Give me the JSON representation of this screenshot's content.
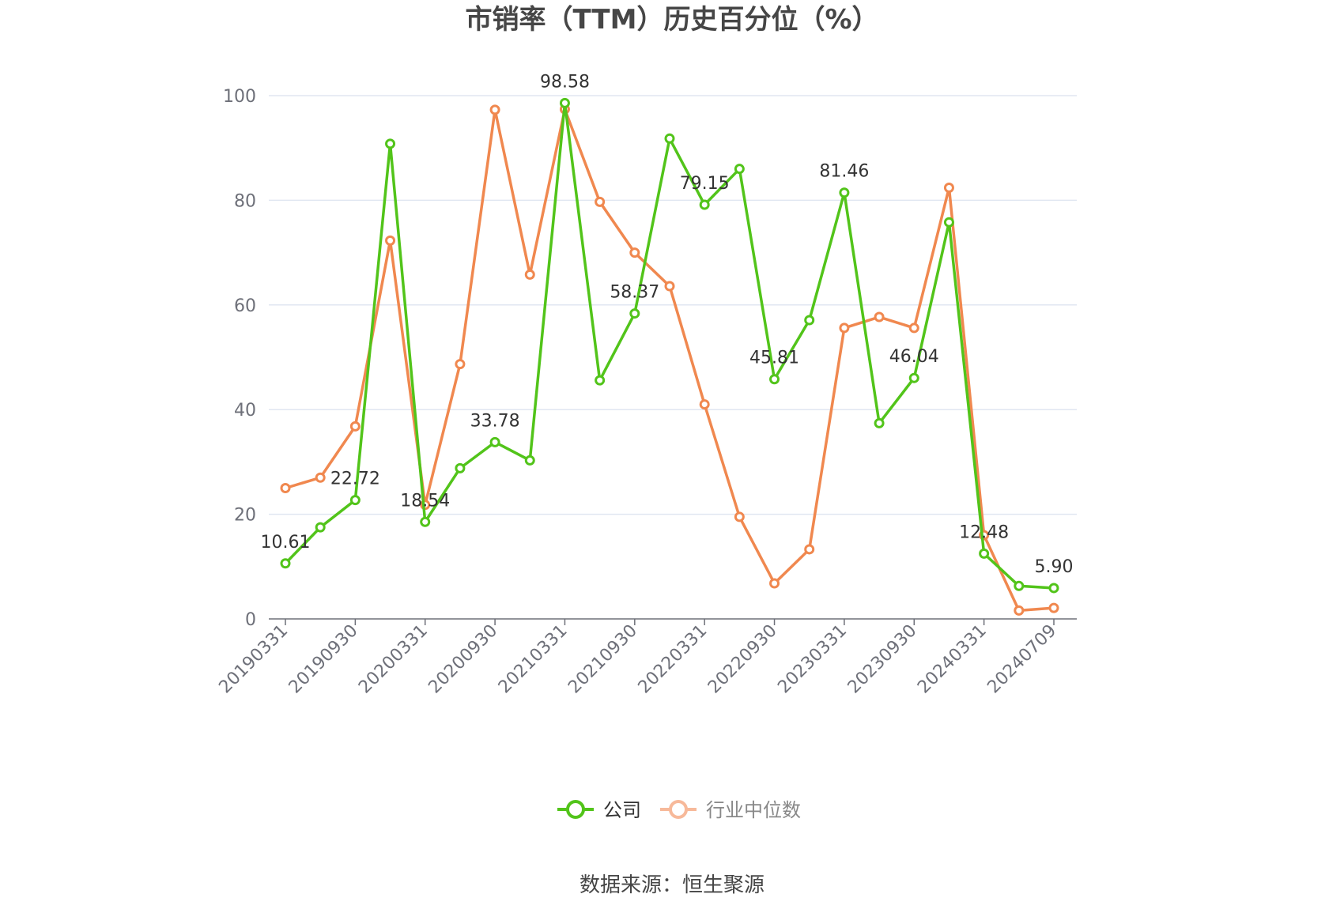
{
  "chart_data": {
    "type": "line",
    "title": "市销率（TTM）历史百分位（%）",
    "source": "数据来源：恒生聚源",
    "ylim": [
      0,
      100
    ],
    "y_ticks": [
      0,
      20,
      40,
      60,
      80,
      100
    ],
    "x": [
      "20190331",
      "20190630",
      "20190930",
      "20191231",
      "20200331",
      "20200630",
      "20200930",
      "20201231",
      "20210331",
      "20210630",
      "20210930",
      "20211231",
      "20220331",
      "20220630",
      "20220930",
      "20221231",
      "20230331",
      "20230630",
      "20230930",
      "20231231",
      "20240331",
      "20240630",
      "20240709"
    ],
    "x_tick_labels": [
      "20190331",
      "20190930",
      "20200331",
      "20200930",
      "20210331",
      "20210930",
      "20220331",
      "20220930",
      "20230331",
      "20230930",
      "20240331",
      "20240709"
    ],
    "grid": true,
    "legend_position": "bottom-center",
    "series": [
      {
        "name": "公司",
        "color": "#52c41a",
        "values": [
          10.61,
          17.5,
          22.72,
          90.8,
          18.54,
          28.8,
          33.78,
          30.3,
          98.58,
          45.6,
          58.37,
          91.8,
          79.15,
          86.0,
          45.81,
          57.1,
          81.46,
          37.4,
          46.04,
          75.8,
          12.48,
          6.3,
          5.9
        ],
        "labels": {
          "0": "10.61",
          "2": "22.72",
          "4": "18.54",
          "6": "33.78",
          "8": "98.58",
          "10": "58.37",
          "12": "79.15",
          "14": "45.81",
          "16": "81.46",
          "18": "46.04",
          "20": "12.48",
          "22": "5.90"
        }
      },
      {
        "name": "行业中位数",
        "color": "#f0884f",
        "values": [
          25.0,
          27.0,
          36.8,
          72.3,
          21.8,
          48.7,
          97.3,
          65.8,
          97.4,
          79.7,
          70.0,
          63.6,
          41.0,
          19.5,
          6.8,
          13.3,
          55.6,
          57.7,
          55.6,
          82.4,
          16.0,
          1.6,
          2.1
        ]
      }
    ]
  }
}
